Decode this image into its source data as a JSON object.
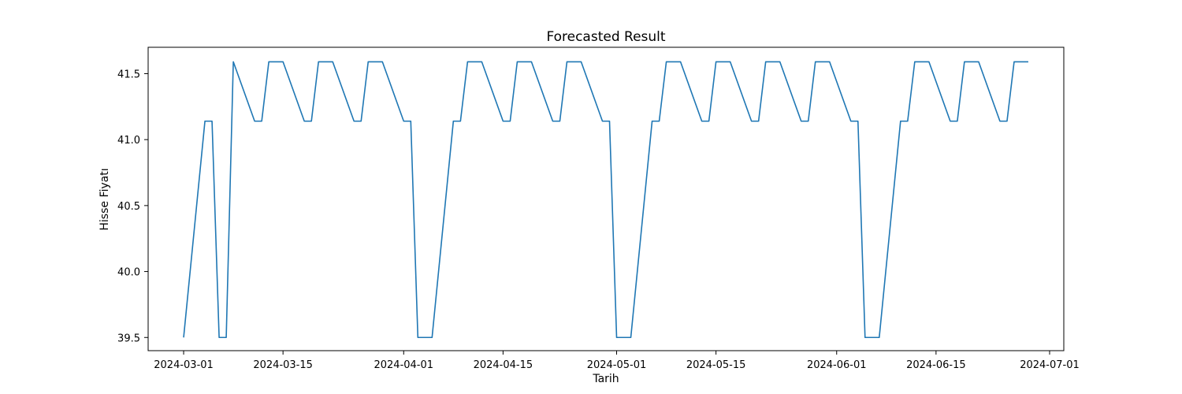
{
  "chart_data": {
    "type": "line",
    "title": "Forecasted Result",
    "xlabel": "Tarih",
    "ylabel": "Hisse Fiyatı",
    "x_ticks": [
      "2024-03-01",
      "2024-03-15",
      "2024-04-01",
      "2024-04-15",
      "2024-05-01",
      "2024-05-15",
      "2024-06-01",
      "2024-06-15",
      "2024-07-01"
    ],
    "y_ticks": [
      "39.5",
      "40.0",
      "40.5",
      "41.0",
      "41.5"
    ],
    "xlim": [
      "2023-02-25",
      "2024-07-03"
    ],
    "ylim": [
      39.4,
      41.7
    ],
    "grid": false,
    "colors": {
      "line": "#1f77b4",
      "axes": "#000000",
      "background": "#ffffff"
    },
    "series": [
      {
        "x": [
          "2024-03-01",
          "2024-03-04",
          "2024-03-05",
          "2024-03-06",
          "2024-03-07",
          "2024-03-08",
          "2024-03-11",
          "2024-03-12",
          "2024-03-13",
          "2024-03-14",
          "2024-03-15",
          "2024-03-18",
          "2024-03-19",
          "2024-03-20",
          "2024-03-21",
          "2024-03-22",
          "2024-03-25",
          "2024-03-26",
          "2024-03-27",
          "2024-03-28",
          "2024-03-29",
          "2024-04-01",
          "2024-04-02",
          "2024-04-03",
          "2024-04-04",
          "2024-04-05",
          "2024-04-08",
          "2024-04-09",
          "2024-04-10",
          "2024-04-11",
          "2024-04-12",
          "2024-04-15",
          "2024-04-16",
          "2024-04-17",
          "2024-04-18",
          "2024-04-19",
          "2024-04-22",
          "2024-04-23",
          "2024-04-24",
          "2024-04-25",
          "2024-04-26",
          "2024-04-29",
          "2024-04-30",
          "2024-05-01",
          "2024-05-02",
          "2024-05-03",
          "2024-05-06",
          "2024-05-07",
          "2024-05-08",
          "2024-05-09",
          "2024-05-10",
          "2024-05-13",
          "2024-05-14",
          "2024-05-15",
          "2024-05-16",
          "2024-05-17",
          "2024-05-20",
          "2024-05-21",
          "2024-05-22",
          "2024-05-23",
          "2024-05-24",
          "2024-05-27",
          "2024-05-28",
          "2024-05-29",
          "2024-05-30",
          "2024-05-31",
          "2024-06-03",
          "2024-06-04",
          "2024-06-05",
          "2024-06-06",
          "2024-06-07",
          "2024-06-10",
          "2024-06-11",
          "2024-06-12",
          "2024-06-13",
          "2024-06-14",
          "2024-06-17",
          "2024-06-18",
          "2024-06-19",
          "2024-06-20",
          "2024-06-21",
          "2024-06-24",
          "2024-06-25",
          "2024-06-26",
          "2024-06-27",
          "2024-06-28"
        ],
        "y": [
          39.5,
          41.14,
          41.14,
          39.5,
          39.5,
          41.59,
          41.14,
          41.14,
          41.59,
          41.59,
          41.59,
          41.14,
          41.14,
          41.59,
          41.59,
          41.59,
          41.14,
          41.14,
          41.59,
          41.59,
          41.59,
          41.14,
          41.14,
          39.5,
          39.5,
          39.5,
          41.14,
          41.14,
          41.59,
          41.59,
          41.59,
          41.14,
          41.14,
          41.59,
          41.59,
          41.59,
          41.14,
          41.14,
          41.59,
          41.59,
          41.59,
          41.14,
          41.14,
          39.5,
          39.5,
          39.5,
          41.14,
          41.14,
          41.59,
          41.59,
          41.59,
          41.14,
          41.14,
          41.59,
          41.59,
          41.59,
          41.14,
          41.14,
          41.59,
          41.59,
          41.59,
          41.14,
          41.14,
          41.59,
          41.59,
          41.59,
          41.14,
          41.14,
          39.5,
          39.5,
          39.5,
          41.14,
          41.14,
          41.59,
          41.59,
          41.59,
          41.14,
          41.14,
          41.59,
          41.59,
          41.59,
          41.14,
          41.14,
          41.59,
          41.59,
          41.59
        ]
      }
    ]
  }
}
